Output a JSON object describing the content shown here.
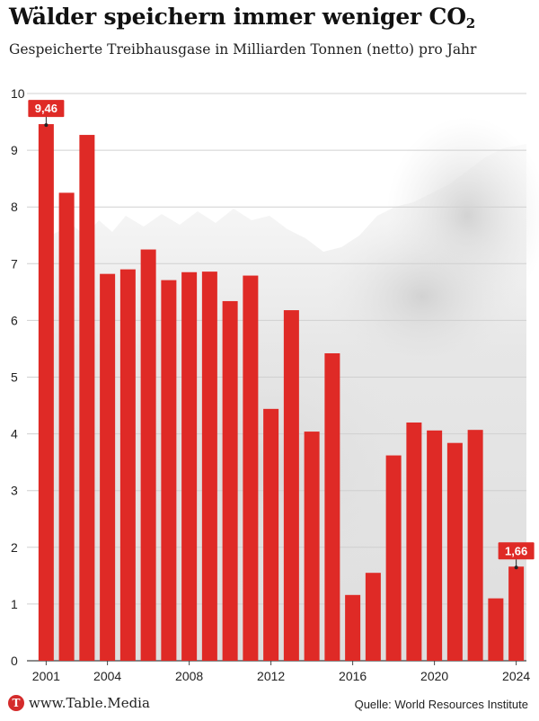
{
  "header": {
    "title": "Wälder speichern immer weniger CO",
    "title_subscript": "2",
    "subtitle": "Gespeicherte Treibhausgase in Milliarden Tonnen (netto) pro Jahr"
  },
  "footer": {
    "logo_letter": "T",
    "brand": "www.Table.Media",
    "source": "Quelle: World Resources Institute"
  },
  "colors": {
    "bar": "#df2a26",
    "label_bg": "#df2a26",
    "grid": "#d0d0d0"
  },
  "chart_data": {
    "type": "bar",
    "title": "Wälder speichern immer weniger CO2",
    "subtitle": "Gespeicherte Treibhausgase in Milliarden Tonnen (netto) pro Jahr",
    "categories": [
      2001,
      2002,
      2003,
      2004,
      2005,
      2006,
      2007,
      2008,
      2009,
      2010,
      2011,
      2012,
      2013,
      2014,
      2015,
      2016,
      2017,
      2018,
      2019,
      2020,
      2021,
      2022,
      2023,
      2024
    ],
    "values": [
      9.46,
      8.25,
      9.27,
      6.82,
      6.9,
      7.25,
      6.71,
      6.85,
      6.86,
      6.34,
      6.79,
      4.44,
      6.18,
      4.04,
      5.42,
      1.16,
      1.55,
      3.62,
      4.2,
      4.06,
      3.84,
      4.07,
      1.1,
      1.66
    ],
    "ylim": [
      0,
      10
    ],
    "yticks": [
      0,
      1,
      2,
      3,
      4,
      5,
      6,
      7,
      8,
      9,
      10
    ],
    "xtick_labels": [
      2001,
      2004,
      2008,
      2012,
      2016,
      2020,
      2024
    ],
    "annotations": [
      {
        "year": 2001,
        "label": "9,46"
      },
      {
        "year": 2024,
        "label": "1,66"
      }
    ],
    "grid": true,
    "xlabel": "",
    "ylabel": ""
  }
}
